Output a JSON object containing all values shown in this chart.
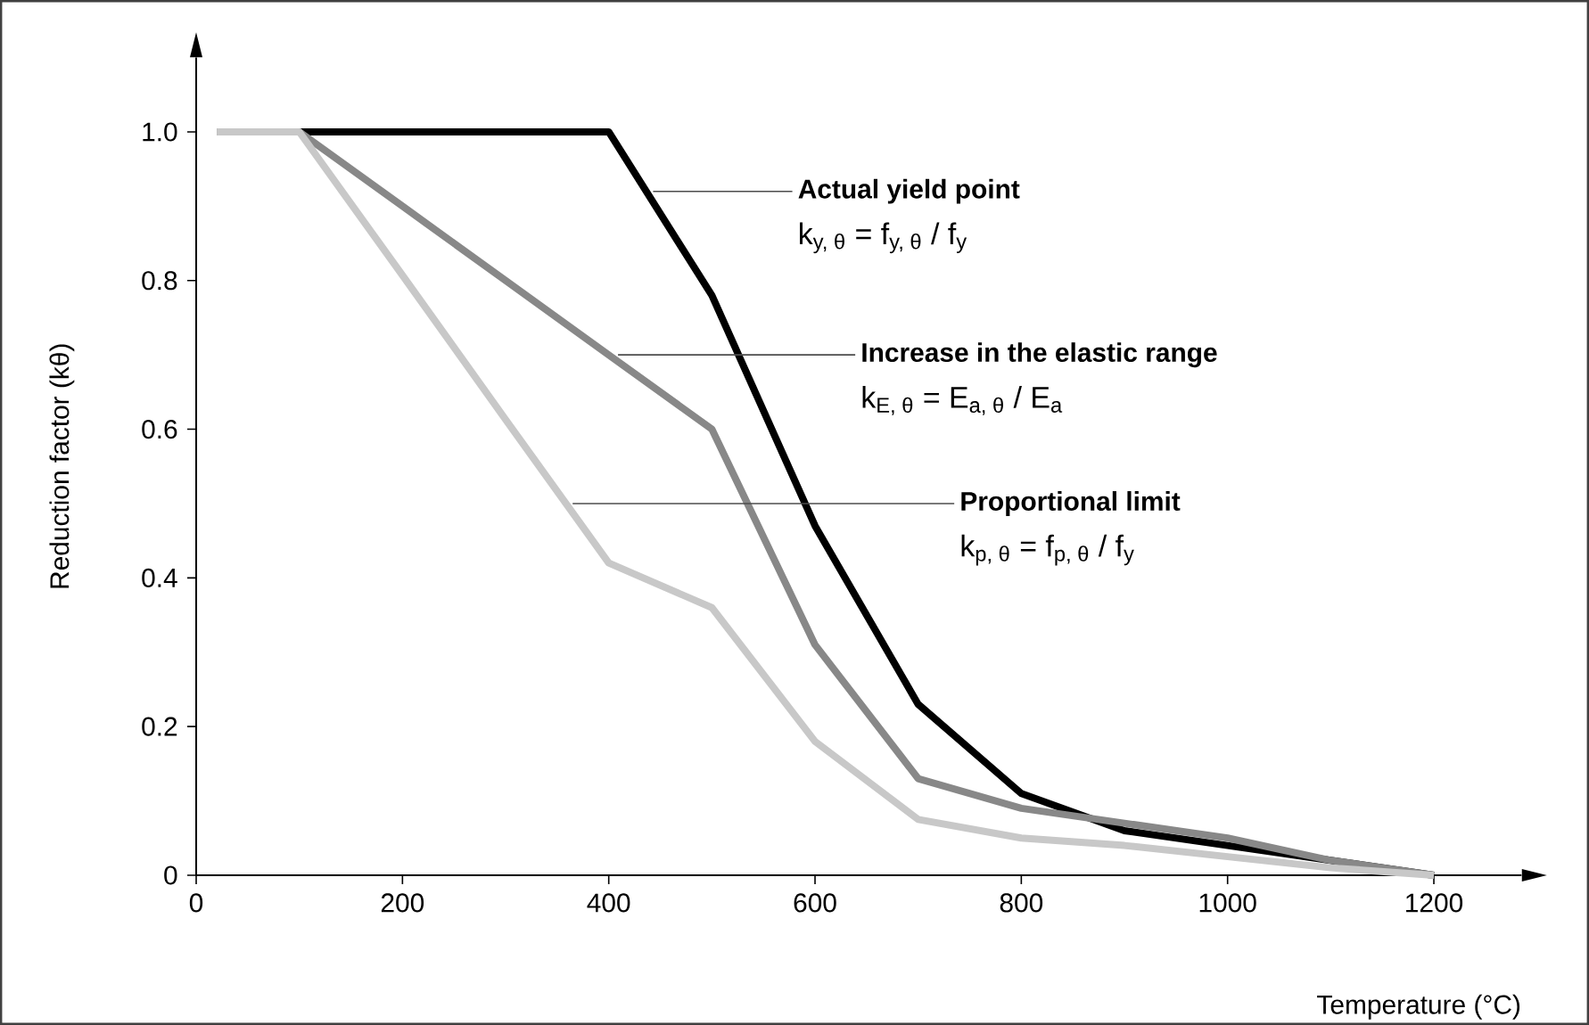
{
  "chart_data": {
    "type": "line",
    "xlabel": "Temperature  (°C)",
    "ylabel": "Reduction factor (kθ)",
    "x": [
      20,
      100,
      200,
      300,
      400,
      500,
      600,
      700,
      800,
      900,
      1000,
      1100,
      1200
    ],
    "series": [
      {
        "color": "#000000",
        "values": [
          null,
          1.0,
          1.0,
          1.0,
          1.0,
          0.78,
          0.47,
          0.23,
          0.11,
          0.06,
          0.04,
          0.02,
          0.0
        ]
      },
      {
        "color": "#888888",
        "values": [
          1.0,
          1.0,
          0.9,
          0.8,
          0.7,
          0.6,
          0.31,
          0.13,
          0.09,
          0.07,
          0.05,
          0.02,
          0.0
        ]
      },
      {
        "color": "#c8c8c8",
        "values": [
          1.0,
          1.0,
          0.807,
          0.613,
          0.42,
          0.36,
          0.18,
          0.075,
          0.05,
          0.04,
          0.025,
          0.01,
          0.0
        ]
      }
    ],
    "annotations": [
      {
        "text": "Actual yield point",
        "x": 443,
        "y": 0.92
      },
      "\\text{k}_{\\text{y, θ}}\\text{ = f}_{\\text{y, θ}}\\text{ / f}_{\\text{y}}",
      {
        "text": "Increase in the elastic range",
        "x": 409,
        "y": 0.7
      },
      "\\text{k}_{\\text{E, θ}}\\text{ = E}_{\\text{a, θ}}\\text{ / E}_{\\text{a}}",
      {
        "text": "Proportional limit",
        "x": 365,
        "y": 0.5
      },
      "\\text{k}_{\\text{p, θ}}\\text{ = f}_{\\text{p, θ}}\\text{ / f}_{\\text{y}}"
    ],
    "xlim": [
      0,
      1285
    ],
    "ylim": [
      0,
      1.1
    ],
    "xticks": [
      0,
      200,
      400,
      600,
      800,
      1000,
      1200
    ],
    "yticks": [
      0,
      {
        "value": 0.2,
        "label": "0.2"
      },
      {
        "value": 0.4,
        "label": "0.4"
      },
      {
        "value": 0.6,
        "label": "0.6"
      },
      {
        "value": 0.8,
        "label": "0.8"
      },
      {
        "value": 1,
        "label": "1.0"
      }
    ],
    "grid": false,
    "marker": "none",
    "line_style": "solid"
  }
}
